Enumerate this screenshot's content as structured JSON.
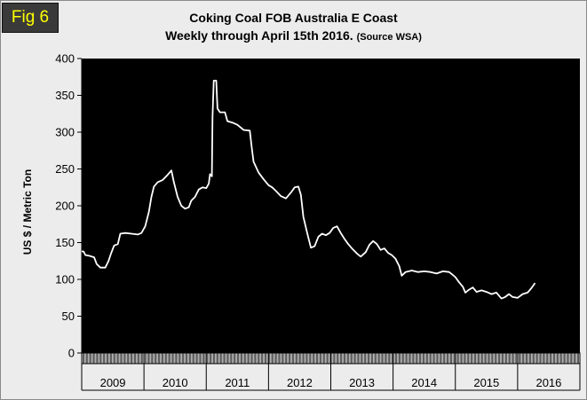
{
  "fig_badge": "Fig 6",
  "chart_data": {
    "type": "line",
    "title_line1": "Coking Coal FOB Australia E Coast",
    "title_line2": "Weekly through April 15th 2016.",
    "title_source": "(Source WSA)",
    "ylabel": "US $ / Metric Ton",
    "xlabel": "",
    "ylim": [
      0,
      400
    ],
    "yticks": [
      0,
      50,
      100,
      150,
      200,
      250,
      300,
      350,
      400
    ],
    "years": [
      "2009",
      "2010",
      "2011",
      "2012",
      "2013",
      "2014",
      "2015",
      "2016"
    ],
    "grid": false,
    "legend": "none",
    "colors": {
      "plot_background": "#000000",
      "line": "#ffffff",
      "page_background": "#ececec",
      "badge_text": "#ffff00"
    },
    "series": [
      {
        "points": [
          [
            2009.0,
            138
          ],
          [
            2009.03,
            138
          ],
          [
            2009.06,
            133
          ],
          [
            2009.12,
            132
          ],
          [
            2009.2,
            130
          ],
          [
            2009.24,
            121
          ],
          [
            2009.3,
            116
          ],
          [
            2009.38,
            116
          ],
          [
            2009.43,
            125
          ],
          [
            2009.47,
            135
          ],
          [
            2009.52,
            146
          ],
          [
            2009.58,
            148
          ],
          [
            2009.62,
            162
          ],
          [
            2009.7,
            163
          ],
          [
            2009.8,
            162
          ],
          [
            2009.9,
            161
          ],
          [
            2009.96,
            163
          ],
          [
            2010.02,
            172
          ],
          [
            2010.08,
            192
          ],
          [
            2010.12,
            212
          ],
          [
            2010.16,
            226
          ],
          [
            2010.22,
            232
          ],
          [
            2010.3,
            235
          ],
          [
            2010.38,
            242
          ],
          [
            2010.44,
            248
          ],
          [
            2010.48,
            232
          ],
          [
            2010.54,
            212
          ],
          [
            2010.6,
            200
          ],
          [
            2010.66,
            196
          ],
          [
            2010.72,
            198
          ],
          [
            2010.76,
            207
          ],
          [
            2010.82,
            212
          ],
          [
            2010.88,
            222
          ],
          [
            2010.94,
            225
          ],
          [
            2011.0,
            224
          ],
          [
            2011.04,
            230
          ],
          [
            2011.06,
            243
          ],
          [
            2011.09,
            240
          ],
          [
            2011.1,
            320
          ],
          [
            2011.12,
            370
          ],
          [
            2011.16,
            370
          ],
          [
            2011.18,
            332
          ],
          [
            2011.22,
            327
          ],
          [
            2011.3,
            327
          ],
          [
            2011.34,
            315
          ],
          [
            2011.42,
            313
          ],
          [
            2011.5,
            310
          ],
          [
            2011.6,
            303
          ],
          [
            2011.7,
            302
          ],
          [
            2011.73,
            280
          ],
          [
            2011.76,
            260
          ],
          [
            2011.84,
            245
          ],
          [
            2011.92,
            236
          ],
          [
            2012.0,
            228
          ],
          [
            2012.06,
            225
          ],
          [
            2012.12,
            220
          ],
          [
            2012.2,
            213
          ],
          [
            2012.28,
            210
          ],
          [
            2012.36,
            218
          ],
          [
            2012.42,
            225
          ],
          [
            2012.48,
            226
          ],
          [
            2012.52,
            215
          ],
          [
            2012.56,
            185
          ],
          [
            2012.62,
            163
          ],
          [
            2012.68,
            143
          ],
          [
            2012.74,
            145
          ],
          [
            2012.8,
            158
          ],
          [
            2012.86,
            162
          ],
          [
            2012.92,
            160
          ],
          [
            2012.98,
            163
          ],
          [
            2013.04,
            170
          ],
          [
            2013.1,
            172
          ],
          [
            2013.16,
            163
          ],
          [
            2013.22,
            155
          ],
          [
            2013.28,
            148
          ],
          [
            2013.34,
            142
          ],
          [
            2013.42,
            135
          ],
          [
            2013.48,
            131
          ],
          [
            2013.56,
            137
          ],
          [
            2013.62,
            147
          ],
          [
            2013.68,
            152
          ],
          [
            2013.74,
            148
          ],
          [
            2013.8,
            140
          ],
          [
            2013.86,
            142
          ],
          [
            2013.92,
            136
          ],
          [
            2013.98,
            133
          ],
          [
            2014.04,
            128
          ],
          [
            2014.1,
            118
          ],
          [
            2014.14,
            105
          ],
          [
            2014.2,
            110
          ],
          [
            2014.3,
            112
          ],
          [
            2014.4,
            110
          ],
          [
            2014.5,
            111
          ],
          [
            2014.6,
            110
          ],
          [
            2014.7,
            108
          ],
          [
            2014.8,
            111
          ],
          [
            2014.9,
            110
          ],
          [
            2014.96,
            106
          ],
          [
            2015.0,
            103
          ],
          [
            2015.06,
            96
          ],
          [
            2015.12,
            90
          ],
          [
            2015.16,
            82
          ],
          [
            2015.22,
            86
          ],
          [
            2015.28,
            89
          ],
          [
            2015.34,
            83
          ],
          [
            2015.42,
            85
          ],
          [
            2015.5,
            83
          ],
          [
            2015.58,
            80
          ],
          [
            2015.66,
            82
          ],
          [
            2015.74,
            74
          ],
          [
            2015.8,
            76
          ],
          [
            2015.86,
            80
          ],
          [
            2015.92,
            76
          ],
          [
            2016.0,
            75
          ],
          [
            2016.08,
            80
          ],
          [
            2016.16,
            82
          ],
          [
            2016.22,
            88
          ],
          [
            2016.28,
            95
          ]
        ]
      }
    ]
  }
}
